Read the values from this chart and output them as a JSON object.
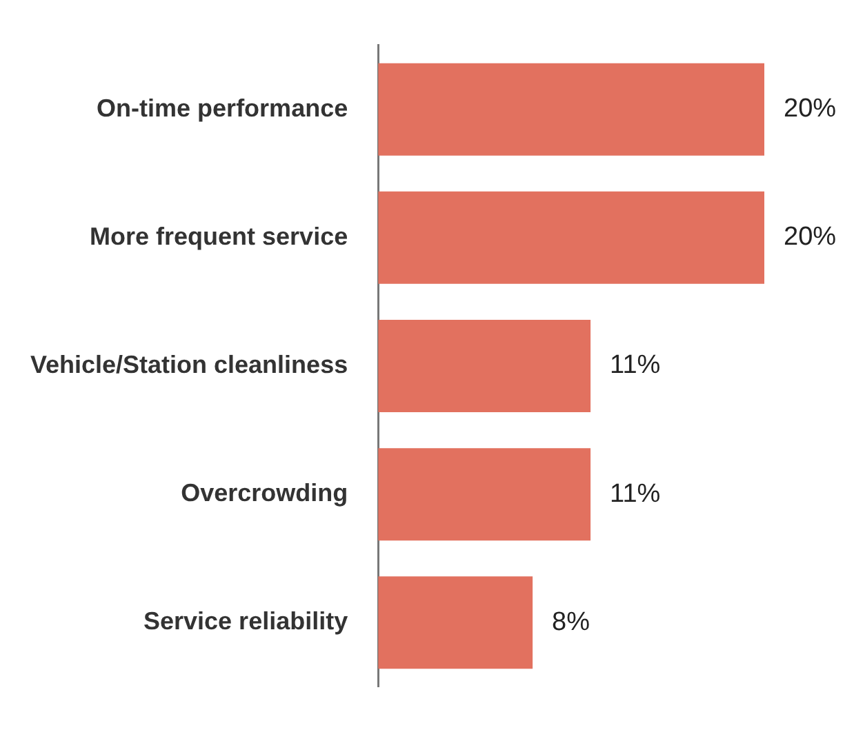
{
  "chart_data": {
    "type": "bar",
    "orientation": "horizontal",
    "categories": [
      "On-time performance",
      "More frequent service",
      "Vehicle/Station cleanliness",
      "Overcrowding",
      "Service reliability"
    ],
    "values": [
      20,
      20,
      11,
      11,
      8
    ],
    "color": "#e2715f",
    "value_labels": [
      "20%",
      "20%",
      "11%",
      "11%",
      "8%"
    ],
    "legend": false
  }
}
